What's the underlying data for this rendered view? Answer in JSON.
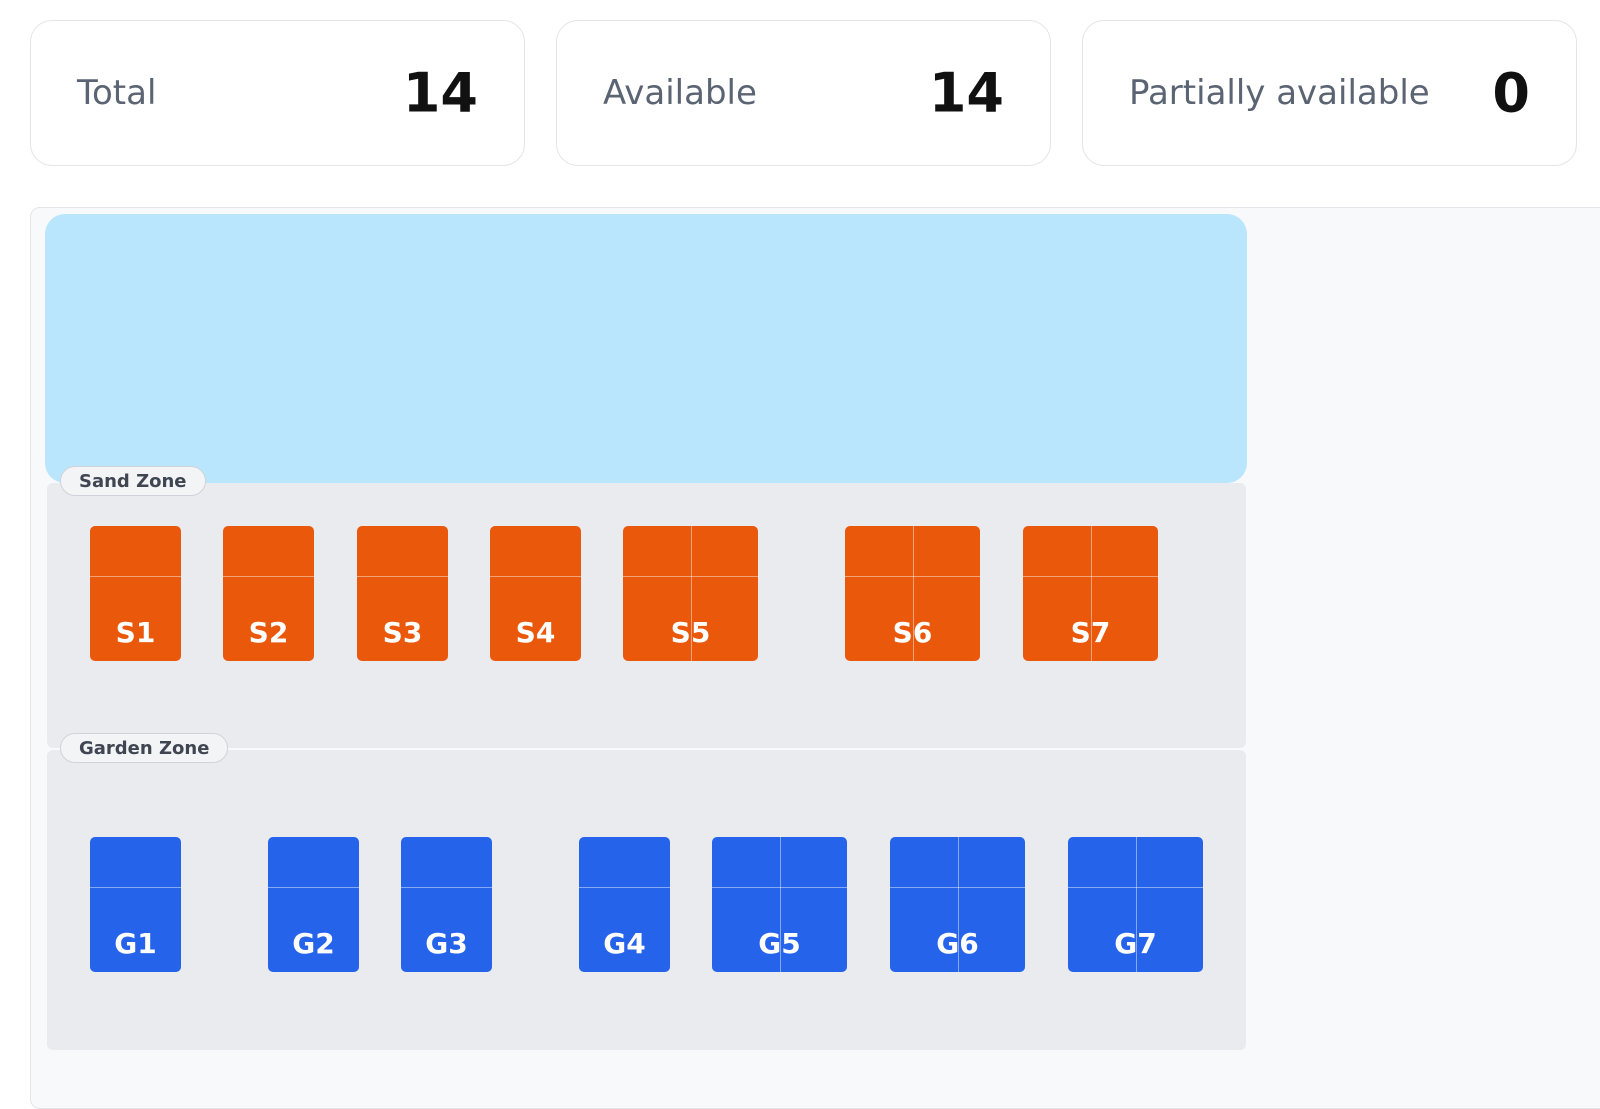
{
  "stats": [
    {
      "label": "Total",
      "value": 14
    },
    {
      "label": "Available",
      "value": 14
    },
    {
      "label": "Partially available",
      "value": 0
    }
  ],
  "zones": [
    {
      "name": "Sand Zone",
      "spots": [
        "S1",
        "S2",
        "S3",
        "S4",
        "S5",
        "S6",
        "S7"
      ]
    },
    {
      "name": "Garden Zone",
      "spots": [
        "G1",
        "G2",
        "G3",
        "G4",
        "G5",
        "G6",
        "G7"
      ]
    }
  ]
}
